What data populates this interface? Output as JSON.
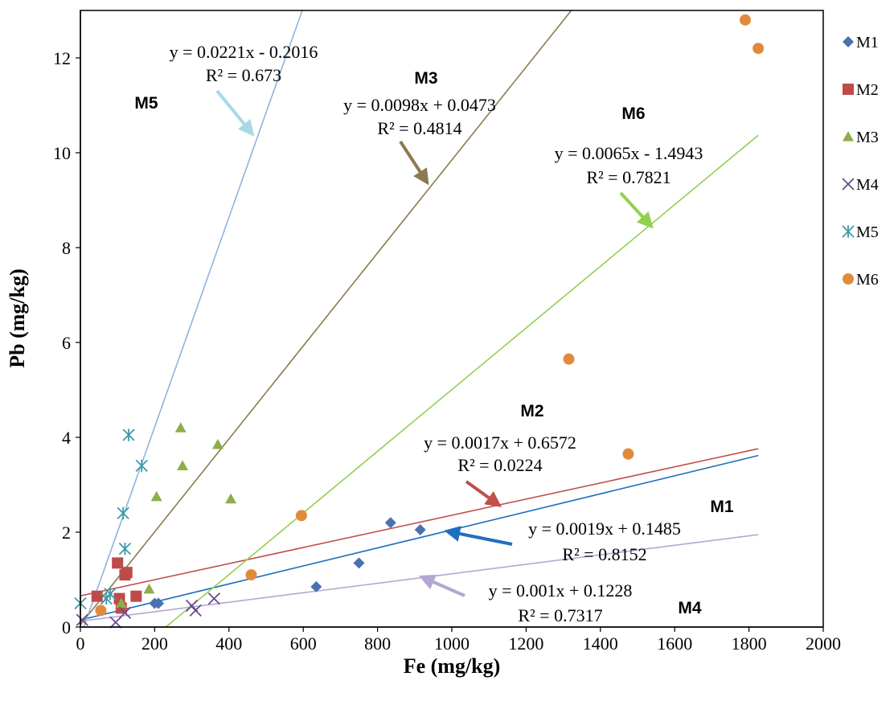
{
  "chart_data": {
    "type": "scatter",
    "xlabel": "Fe (mg/kg)",
    "ylabel": "Pb (mg/kg)",
    "xlim": [
      0,
      2000
    ],
    "ylim": [
      0,
      13
    ],
    "xticks": [
      "0",
      "200",
      "400",
      "600",
      "800",
      "1000",
      "1200",
      "1400",
      "1600",
      "1800",
      "2000"
    ],
    "yticks": [
      "0",
      "2",
      "4",
      "6",
      "8",
      "10",
      "12"
    ],
    "legend_position": "right",
    "grid": false,
    "series": [
      {
        "name": "M1",
        "marker": "diamond",
        "color": "#4a72b0",
        "line_color": "#1f6fbf",
        "points": [
          [
            200,
            0.5
          ],
          [
            210,
            0.5
          ],
          [
            635,
            0.85
          ],
          [
            750,
            1.35
          ],
          [
            835,
            2.2
          ],
          [
            915,
            2.05
          ]
        ],
        "trend": {
          "slope": 0.0019,
          "intercept": 0.1485,
          "x_range": [
            0,
            1825
          ]
        },
        "label": "M1",
        "equation": "y = 0.0019x + 0.1485",
        "r2": "R² = 0.8152"
      },
      {
        "name": "M2",
        "marker": "square",
        "color": "#be4b48",
        "line_color": "#c0504d",
        "points": [
          [
            45,
            0.65
          ],
          [
            100,
            1.35
          ],
          [
            105,
            0.6
          ],
          [
            110,
            0.4
          ],
          [
            120,
            1.1
          ],
          [
            125,
            1.15
          ],
          [
            150,
            0.65
          ]
        ],
        "trend": {
          "slope": 0.0017,
          "intercept": 0.6572,
          "x_range": [
            0,
            1825
          ]
        },
        "label": "M2",
        "equation": "y = 0.0017x + 0.6572",
        "r2": "R² = 0.0224"
      },
      {
        "name": "M3",
        "marker": "triangle",
        "color": "#8fad4b",
        "line_color": "#8b7a4f",
        "points": [
          [
            110,
            0.5
          ],
          [
            185,
            0.8
          ],
          [
            205,
            2.75
          ],
          [
            270,
            4.2
          ],
          [
            275,
            3.4
          ],
          [
            370,
            3.85
          ],
          [
            405,
            2.7
          ]
        ],
        "trend": {
          "slope": 0.0098,
          "intercept": 0.0473,
          "x_range": [
            0,
            1325
          ]
        },
        "label": "M3",
        "equation": "y = 0.0098x + 0.0473",
        "r2": "R² = 0.4814"
      },
      {
        "name": "M4",
        "marker": "x",
        "color": "#6a4c8c",
        "line_color": "#b3a7d1",
        "points": [
          [
            5,
            0.15
          ],
          [
            95,
            0.1
          ],
          [
            120,
            0.3
          ],
          [
            300,
            0.45
          ],
          [
            310,
            0.35
          ],
          [
            360,
            0.6
          ]
        ],
        "trend": {
          "slope": 0.001,
          "intercept": 0.1228,
          "x_range": [
            0,
            1825
          ]
        },
        "label": "M4",
        "equation": "y = 0.001x + 0.1228",
        "r2": "R² = 0.7317"
      },
      {
        "name": "M5",
        "marker": "star",
        "color": "#3d9aa8",
        "line_color": "#8db4e2",
        "points": [
          [
            0,
            0.5
          ],
          [
            70,
            0.6
          ],
          [
            80,
            0.7
          ],
          [
            115,
            2.4
          ],
          [
            120,
            1.65
          ],
          [
            130,
            4.05
          ],
          [
            165,
            3.4
          ]
        ],
        "trend": {
          "slope": 0.0221,
          "intercept": -0.2016,
          "x_range": [
            0,
            597
          ]
        },
        "label": "M5",
        "equation": "y = 0.0221x - 0.2016",
        "r2": "R² = 0.673"
      },
      {
        "name": "M6",
        "marker": "circle",
        "color": "#e08b3c",
        "line_color": "#92d050",
        "points": [
          [
            55,
            0.35
          ],
          [
            460,
            1.1
          ],
          [
            595,
            2.35
          ],
          [
            1315,
            5.65
          ],
          [
            1475,
            3.65
          ],
          [
            1790,
            12.8
          ],
          [
            1825,
            12.2
          ]
        ],
        "trend": {
          "slope": 0.0065,
          "intercept": -1.4943,
          "x_range": [
            230,
            1825
          ]
        },
        "label": "M6",
        "equation": "y = 0.0065x - 1.4943",
        "r2": "R² = 0.7821"
      }
    ]
  }
}
